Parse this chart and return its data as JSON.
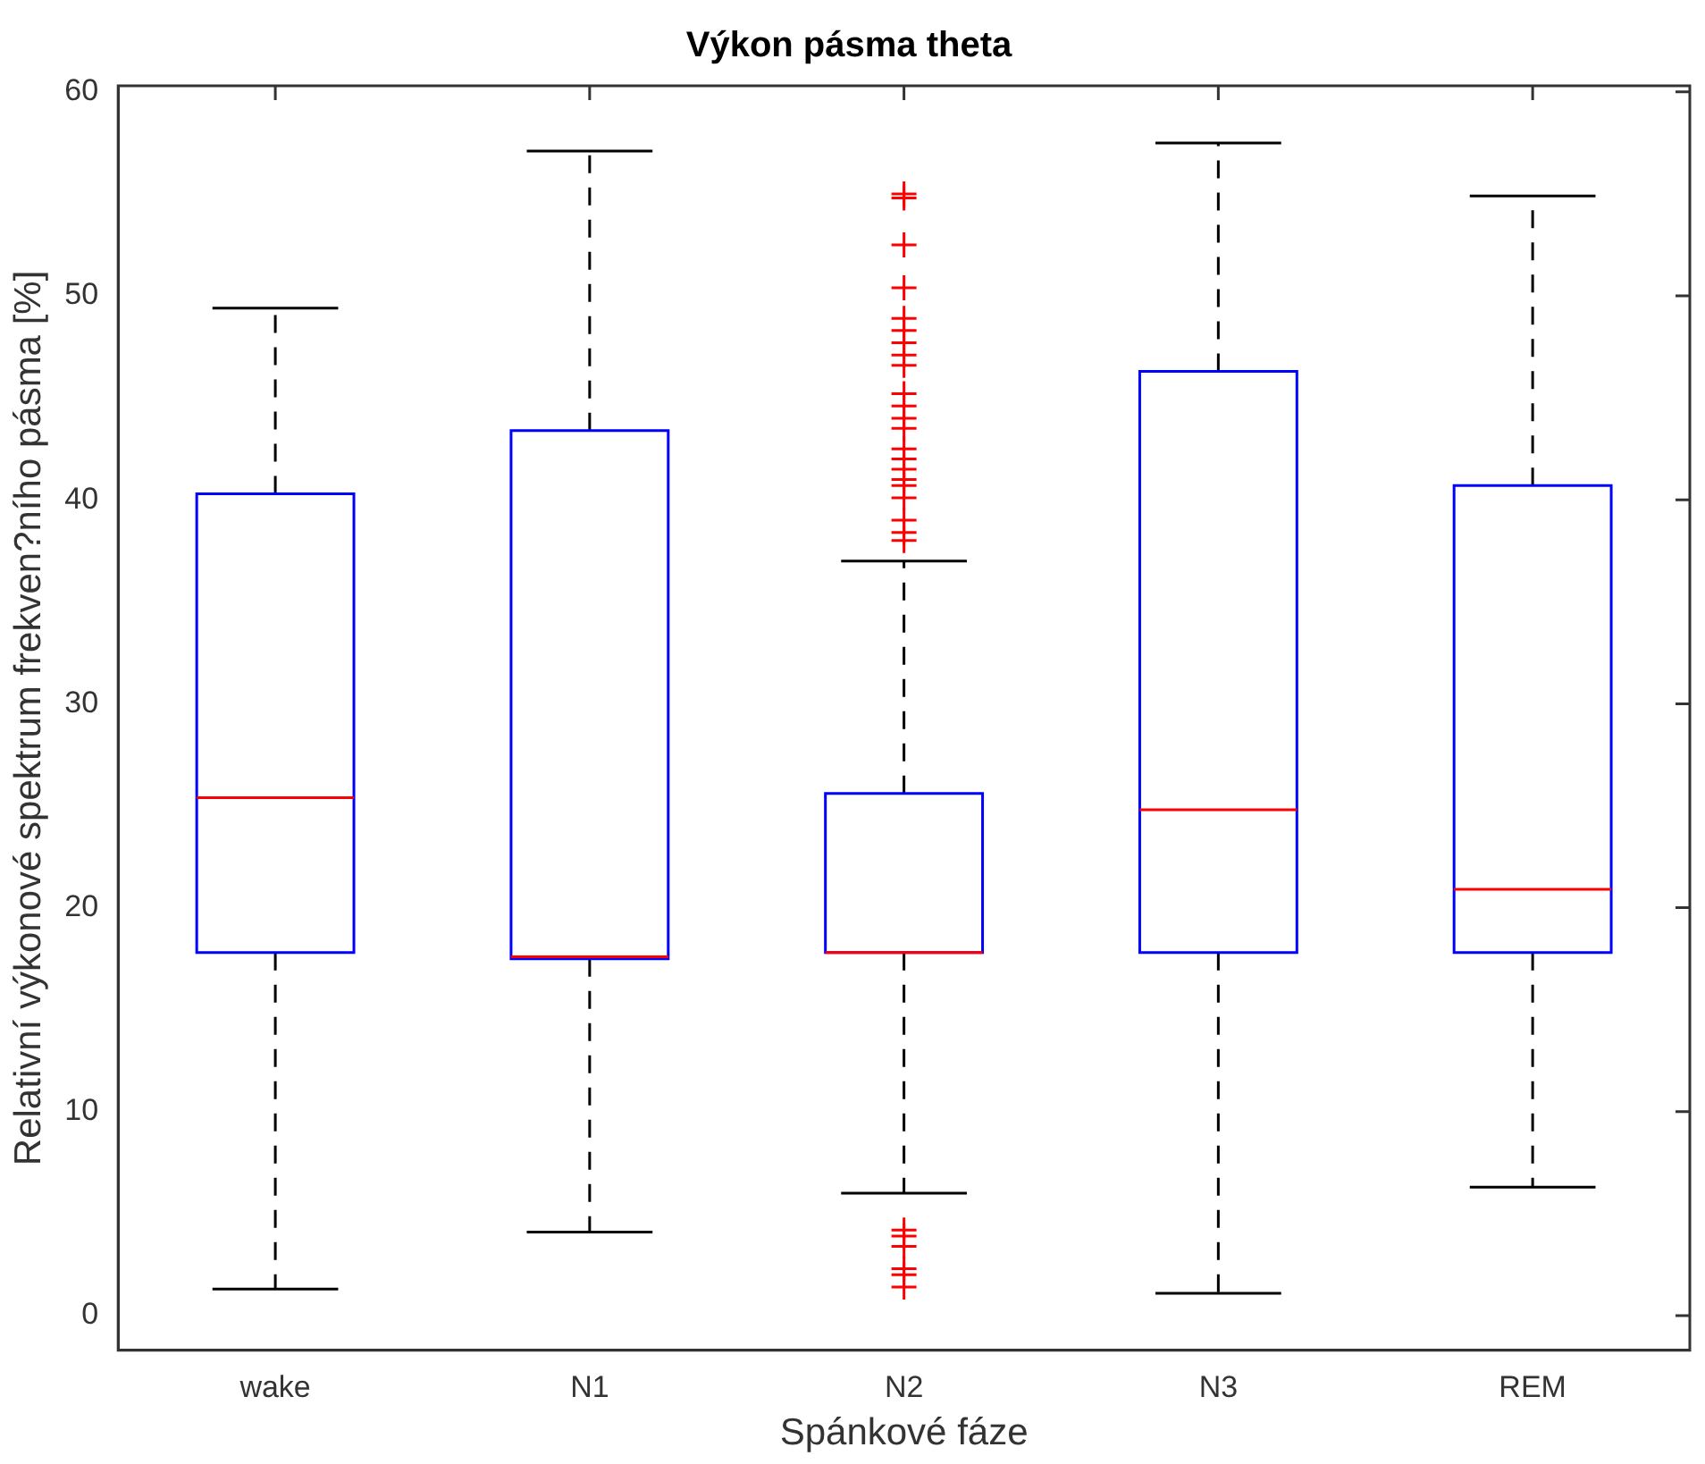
{
  "chart_data": {
    "type": "box",
    "title": "Výkon pásma theta",
    "xlabel": "Spánkové fáze",
    "ylabel": "Relativní výkonové spektrum frekven?ního pásma [%]",
    "categories": [
      "wake",
      "N1",
      "N2",
      "N3",
      "REM"
    ],
    "color": "#0000ff",
    "marker": "cross",
    "line_style": "dashed",
    "grid": false,
    "legend": false,
    "ylim": [
      -1.7,
      60.3
    ],
    "yticks": [
      0,
      10,
      20,
      30,
      40,
      50,
      60
    ],
    "boxes": [
      {
        "low": 1.3,
        "q1": 17.8,
        "median": 25.4,
        "q3": 40.3,
        "high": 49.4
      },
      {
        "low": 4.1,
        "q1": 17.5,
        "median": 17.6,
        "q3": 43.4,
        "high": 57.1
      },
      {
        "low": 6.0,
        "q1": 17.8,
        "median": 17.8,
        "q3": 25.6,
        "high": 37.0,
        "outliers": [
          55.0,
          54.8,
          52.5,
          50.4,
          48.9,
          48.3,
          47.7,
          47.1,
          46.6,
          45.2,
          44.6,
          44.0,
          43.5,
          42.5,
          42.0,
          41.5,
          41.0,
          40.7,
          40.1,
          39.0,
          38.4,
          38.0,
          4.2,
          3.9,
          3.4,
          2.3,
          2.0,
          1.4
        ]
      },
      {
        "low": 1.1,
        "q1": 17.8,
        "median": 24.8,
        "q3": 46.3,
        "high": 57.5
      },
      {
        "low": 6.3,
        "q1": 17.8,
        "median": 20.9,
        "q3": 40.7,
        "high": 54.9
      }
    ]
  }
}
